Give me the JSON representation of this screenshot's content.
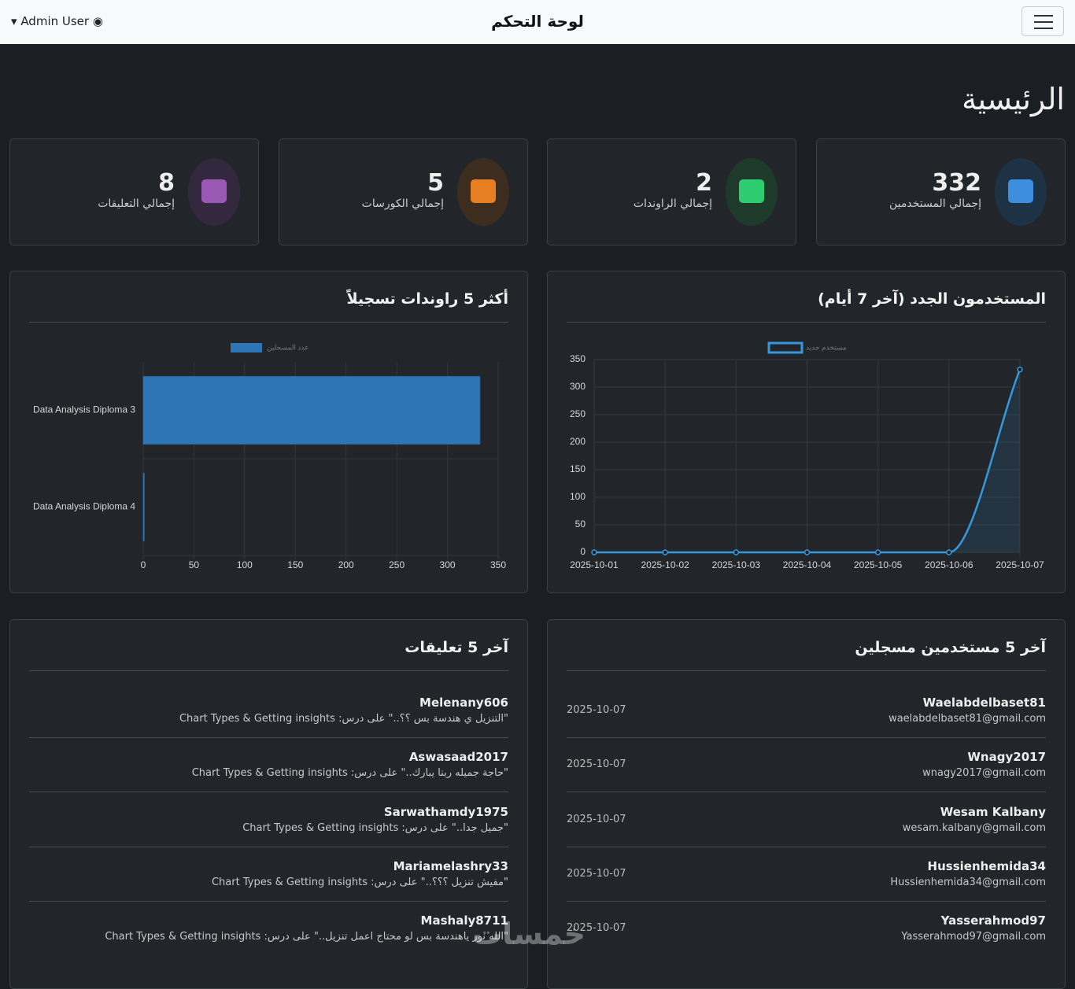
{
  "header": {
    "title": "لوحة التحكم",
    "user": "Admin User"
  },
  "page_title": "الرئيسية",
  "stats": [
    {
      "label": "إجمالي المستخدمين",
      "value": "332"
    },
    {
      "label": "إجمالي الراوندات",
      "value": "2"
    },
    {
      "label": "إجمالي الكورسات",
      "value": "5"
    },
    {
      "label": "إجمالي التعليقات",
      "value": "8"
    }
  ],
  "chart_data": [
    {
      "type": "line",
      "title": "المستخدمون الجدد (آخر 7 أيام)",
      "x": [
        "2025-10-01",
        "2025-10-02",
        "2025-10-03",
        "2025-10-04",
        "2025-10-05",
        "2025-10-06",
        "2025-10-07"
      ],
      "series": [
        {
          "name": "مستخدم جديد",
          "color": "#3498db",
          "values": [
            0,
            0,
            0,
            0,
            0,
            0,
            332
          ]
        }
      ],
      "ylim": [
        0,
        350
      ],
      "yticks": [
        0,
        50,
        100,
        150,
        200,
        250,
        300,
        350
      ],
      "grid": true
    },
    {
      "type": "bar",
      "orientation": "horizontal",
      "title": "أكثر 5 راوندات تسجيلاً",
      "categories": [
        "Data Analysis Diploma 3",
        "Data Analysis Diploma 4"
      ],
      "series": [
        {
          "name": "عدد المسجلين",
          "color": "#2e75b6",
          "values": [
            332,
            1
          ]
        }
      ],
      "xlim": [
        0,
        350
      ],
      "xticks": [
        0,
        50,
        100,
        150,
        200,
        250,
        300,
        350
      ],
      "grid": true
    }
  ],
  "latest_users": {
    "title": "آخر 5 مستخدمين مسجلين",
    "rows": [
      {
        "name": "Waelabdelbaset81",
        "email": "waelabdelbaset81@gmail.com",
        "date": "2025-10-07"
      },
      {
        "name": "Wnagy2017",
        "email": "wnagy2017@gmail.com",
        "date": "2025-10-07"
      },
      {
        "name": "Wesam Kalbany",
        "email": "wesam.kalbany@gmail.com",
        "date": "2025-10-07"
      },
      {
        "name": "Hussienhemida34",
        "email": "Hussienhemida34@gmail.com",
        "date": "2025-10-07"
      },
      {
        "name": "Yasserahmod97",
        "email": "Yasserahmod97@gmail.com",
        "date": "2025-10-07"
      }
    ]
  },
  "latest_comments": {
    "title": "آخر 5 تعليقات",
    "rows": [
      {
        "name": "Melenany606",
        "text": "\"التنزيل ي هندسة بس ؟؟..\" على درس: Chart Types & Getting insights"
      },
      {
        "name": "Aswasaad2017",
        "text": "\"حاجة جميله ربنا يبارك..\" على درس: Chart Types & Getting insights"
      },
      {
        "name": "Sarwathamdy1975",
        "text": "\"جميل جدا..\" على درس: Chart Types & Getting insights"
      },
      {
        "name": "Mariamelashry33",
        "text": "\"مفيش تنزيل ؟؟؟..\" على درس: Chart Types & Getting insights"
      },
      {
        "name": "Mashaly8711",
        "text": "\"الله نور ياهندسة بس لو محتاج اعمل تنزيل..\" على درس: Chart Types & Getting insights"
      }
    ]
  },
  "watermark": "خمسات"
}
